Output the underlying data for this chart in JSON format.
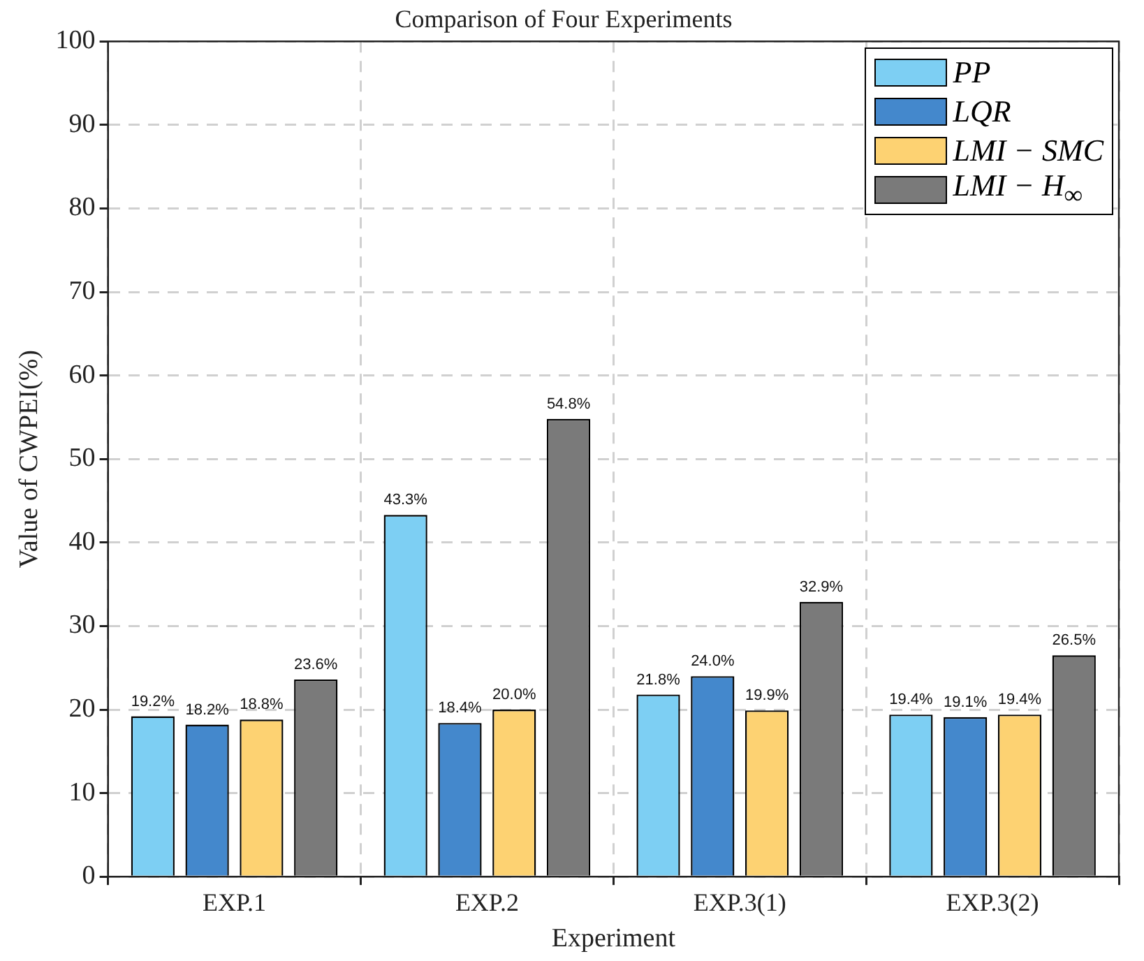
{
  "chart_data": {
    "type": "bar",
    "title": "Comparison of Four Experiments",
    "xlabel": "Experiment",
    "ylabel": "Value of CWPEI(%)",
    "categories": [
      "EXP.1",
      "EXP.2",
      "EXP.3(1)",
      "EXP.3(2)"
    ],
    "series": [
      {
        "name": "PP",
        "color": "#7dcff3",
        "values": [
          19.2,
          43.3,
          21.8,
          19.4
        ],
        "value_labels": [
          "19.2%",
          "43.3%",
          "21.8%",
          "19.4%"
        ]
      },
      {
        "name": "LQR",
        "color": "#4488cc",
        "values": [
          18.2,
          18.4,
          24.0,
          19.1
        ],
        "value_labels": [
          "18.2%",
          "18.4%",
          "24.0%",
          "19.1%"
        ]
      },
      {
        "name": "LMI − SMC",
        "color": "#fdd272",
        "values": [
          18.8,
          20.0,
          19.9,
          19.4
        ],
        "value_labels": [
          "18.8%",
          "20.0%",
          "19.9%",
          "19.4%"
        ]
      },
      {
        "name": "LMI − H$_{∞}$",
        "color": "#7a7a7a",
        "values": [
          23.6,
          54.8,
          32.9,
          26.5
        ],
        "value_labels": [
          "23.6%",
          "54.8%",
          "32.9%",
          "26.5%"
        ]
      }
    ],
    "ylim": [
      0,
      100
    ],
    "yticks": [
      0,
      10,
      20,
      30,
      40,
      50,
      60,
      70,
      80,
      90,
      100
    ],
    "grid": true,
    "legend": "top right"
  }
}
